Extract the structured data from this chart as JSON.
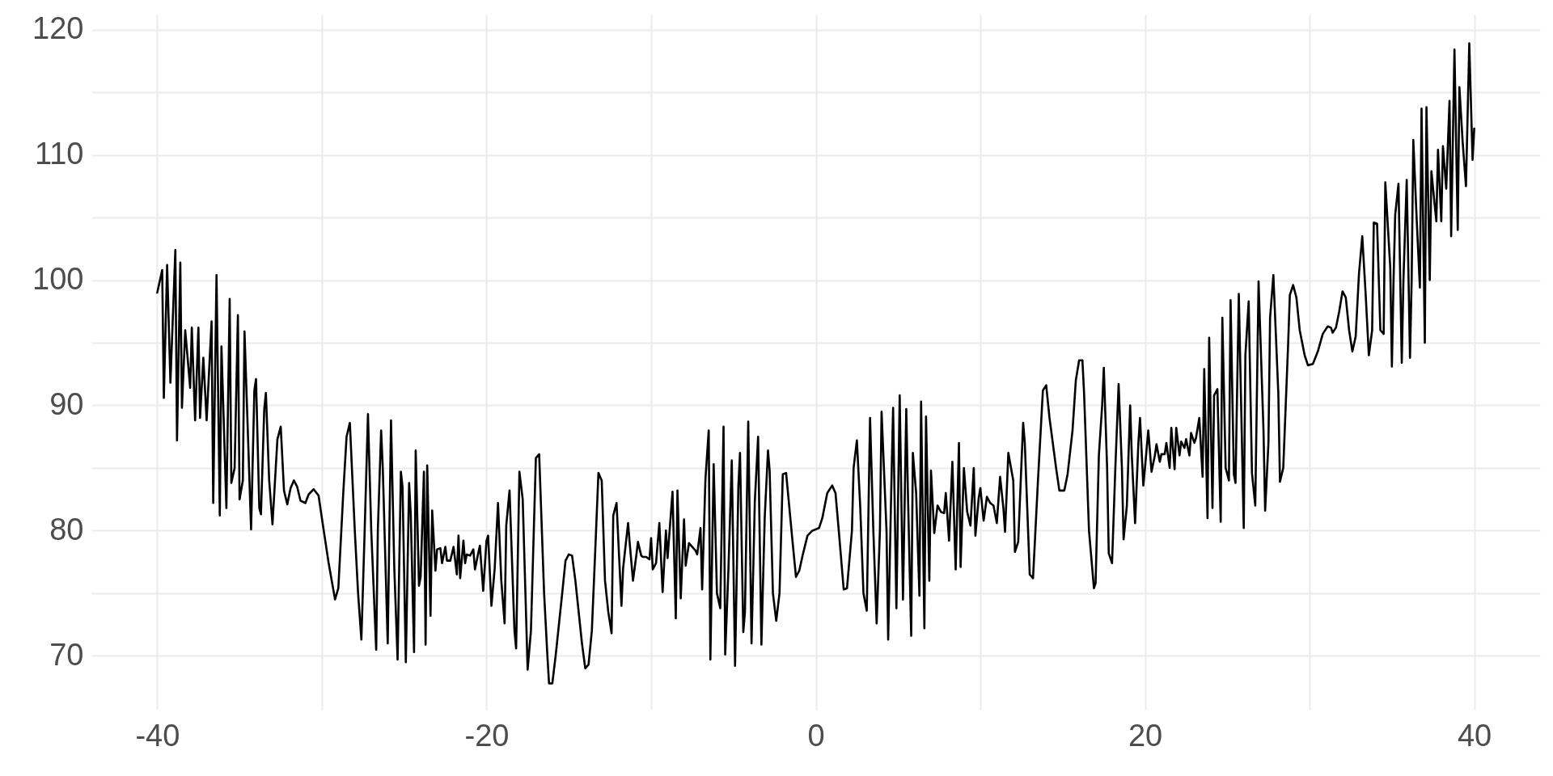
{
  "chart_data": {
    "type": "line",
    "xlim": [
      -44,
      44
    ],
    "ylim": [
      65.7,
      121.2
    ],
    "xticks": [
      -40,
      {
        "value": -30,
        "label": null
      },
      -20,
      {
        "value": -10,
        "label": null
      },
      0,
      {
        "value": 10,
        "label": null
      },
      20,
      {
        "value": 30,
        "label": null
      },
      40
    ],
    "yticks": [
      70,
      {
        "value": 75,
        "label": null
      },
      80,
      {
        "value": 85,
        "label": null
      },
      90,
      {
        "value": 95,
        "label": null
      },
      100,
      {
        "value": 105,
        "label": null
      },
      110,
      {
        "value": 115,
        "label": null
      },
      120
    ],
    "grid": true,
    "line_style": "solid",
    "marker": "none",
    "x": [
      -40,
      -39.7,
      -39.6,
      -39.4,
      -39.2,
      -38.9,
      -38.8,
      -38.6,
      -38.5,
      -38.3,
      -38.0,
      -37.9,
      -37.7,
      -37.5,
      -37.4,
      -37.2,
      -37.0,
      -36.7,
      -36.6,
      -36.4,
      -36.2,
      -36.1,
      -35.8,
      -35.6,
      -35.5,
      -35.3,
      -35.1,
      -35.0,
      -34.8,
      -34.7,
      -34.3,
      -34.1,
      -34.0,
      -33.8,
      -33.7,
      -33.5,
      -33.4,
      -33.2,
      -33.0,
      -32.7,
      -32.5,
      -32.3,
      -32.1,
      -31.9,
      -31.7,
      -31.5,
      -31.3,
      -31.0,
      -30.8,
      -30.5,
      -30.2,
      -30.0,
      -29.6,
      -29.2,
      -29.0,
      -28.7,
      -28.5,
      -28.3,
      -28.0,
      -27.8,
      -27.6,
      -27.4,
      -27.2,
      -27.0,
      -26.7,
      -26.6,
      -26.4,
      -26.3,
      -26.0,
      -25.8,
      -25.6,
      -25.4,
      -25.2,
      -25.1,
      -24.9,
      -24.7,
      -24.6,
      -24.4,
      -24.3,
      -24.1,
      -24.0,
      -23.8,
      -23.7,
      -23.6,
      -23.4,
      -23.3,
      -23.1,
      -23.0,
      -22.8,
      -22.7,
      -22.5,
      -22.4,
      -22.2,
      -22.0,
      -21.8,
      -21.7,
      -21.6,
      -21.4,
      -21.3,
      -21.2,
      -21.0,
      -20.8,
      -20.7,
      -20.5,
      -20.4,
      -20.2,
      -20.0,
      -19.9,
      -19.7,
      -19.5,
      -19.3,
      -19.1,
      -18.9,
      -18.8,
      -18.6,
      -18.3,
      -18.2,
      -18.0,
      -17.8,
      -17.5,
      -17.3,
      -17.0,
      -16.8,
      -16.5,
      -16.3,
      -16.2,
      -16.0,
      -15.8,
      -15.4,
      -15.2,
      -15.0,
      -14.8,
      -14.6,
      -14.2,
      -14.0,
      -13.8,
      -13.6,
      -13.4,
      -13.2,
      -13.0,
      -12.8,
      -12.6,
      -12.4,
      -12.3,
      -12.1,
      -11.8,
      -11.7,
      -11.4,
      -11.3,
      -11.1,
      -10.9,
      -10.8,
      -10.6,
      -10.5,
      -10.3,
      -10.1,
      -10.0,
      -9.9,
      -9.7,
      -9.5,
      -9.3,
      -9.1,
      -9.0,
      -8.7,
      -8.5,
      -8.4,
      -8.2,
      -8.0,
      -7.9,
      -7.7,
      -7.5,
      -7.3,
      -7.2,
      -7.0,
      -6.9,
      -6.7,
      -6.5,
      -6.4,
      -6.2,
      -6.0,
      -5.8,
      -5.6,
      -5.5,
      -5.3,
      -5.1,
      -4.9,
      -4.7,
      -4.6,
      -4.4,
      -4.3,
      -4.1,
      -3.9,
      -3.7,
      -3.5,
      -3.3,
      -3.1,
      -2.9,
      -2.8,
      -2.6,
      -2.4,
      -2.2,
      -2.0,
      -1.8,
      -1.4,
      -1.2,
      -1.0,
      -0.8,
      -0.5,
      -0.2,
      0.2,
      0.4,
      0.7,
      1.0,
      1.2,
      1.4,
      1.7,
      1.9,
      2.2,
      2.3,
      2.5,
      2.7,
      2.9,
      3.1,
      3.3,
      3.5,
      3.7,
      3.9,
      4.0,
      4.3,
      4.4,
      4.6,
      4.7,
      4.9,
      5.1,
      5.3,
      5.5,
      5.6,
      5.8,
      5.9,
      6.1,
      6.3,
      6.4,
      6.6,
      6.7,
      6.9,
      7.0,
      7.2,
      7.4,
      7.6,
      7.8,
      7.9,
      8.1,
      8.3,
      8.5,
      8.7,
      8.8,
      9.0,
      9.2,
      9.4,
      9.6,
      9.7,
      9.9,
      10.0,
      10.2,
      10.4,
      10.6,
      10.8,
      11.0,
      11.2,
      11.4,
      11.5,
      11.7,
      12.0,
      12.1,
      12.3,
      12.6,
      12.7,
      13.0,
      13.2,
      13.5,
      13.8,
      14.0,
      14.2,
      14.6,
      14.8,
      15.1,
      15.3,
      15.6,
      15.8,
      16.0,
      16.2,
      16.3,
      16.6,
      16.9,
      17.0,
      17.2,
      17.4,
      17.5,
      17.7,
      17.8,
      18.0,
      18.2,
      18.4,
      18.6,
      18.7,
      18.9,
      19.1,
      19.2,
      19.4,
      19.6,
      19.7,
      19.9,
      20.0,
      20.2,
      20.4,
      20.6,
      20.7,
      20.9,
      21.0,
      21.2,
      21.3,
      21.5,
      21.6,
      21.8,
      21.9,
      22.1,
      22.2,
      22.4,
      22.5,
      22.7,
      22.8,
      23.0,
      23.1,
      23.3,
      23.5,
      23.6,
      23.8,
      23.9,
      24.1,
      24.2,
      24.4,
      24.6,
      24.7,
      24.9,
      25.1,
      25.2,
      25.4,
      25.5,
      25.7,
      26.0,
      26.1,
      26.3,
      26.5,
      26.7,
      26.9,
      27.2,
      27.3,
      27.5,
      27.6,
      27.8,
      28.1,
      28.2,
      28.4,
      28.7,
      28.8,
      29.0,
      29.2,
      29.4,
      29.7,
      29.9,
      30.2,
      30.5,
      30.8,
      31.1,
      31.3,
      31.4,
      31.6,
      31.8,
      32.0,
      32.2,
      32.4,
      32.6,
      32.8,
      33.0,
      33.2,
      33.4,
      33.6,
      33.8,
      33.9,
      34.1,
      34.3,
      34.5,
      34.6,
      34.9,
      35.0,
      35.1,
      35.2,
      35.4,
      35.6,
      35.7,
      35.9,
      36.1,
      36.2,
      36.3,
      36.5,
      36.7,
      36.8,
      37.0,
      37.1,
      37.3,
      37.4,
      37.6,
      37.7,
      37.8,
      38.0,
      38.1,
      38.3,
      38.5,
      38.6,
      38.8,
      39.0,
      39.1,
      39.3,
      39.5,
      39.7,
      39.9,
      40.0
    ],
    "series": [
      {
        "color": "#000000",
        "values": [
          99,
          100.8,
          90.6,
          101.2,
          91.8,
          102.4,
          87.2,
          101.4,
          89.8,
          96,
          91.4,
          96.2,
          88.8,
          96.2,
          89,
          93.8,
          88.8,
          96.7,
          82.2,
          100.4,
          81.2,
          94.7,
          81.8,
          98.5,
          83.8,
          85,
          97.2,
          82.5,
          84,
          95.9,
          80.1,
          91.2,
          92.1,
          81.8,
          81.3,
          89.7,
          91,
          84,
          80.5,
          87.3,
          88.3,
          83.2,
          82.1,
          83.4,
          84,
          83.5,
          82.4,
          82.2,
          82.9,
          83.3,
          82.8,
          81,
          77.5,
          74.5,
          75.4,
          83,
          87.5,
          88.6,
          80,
          75,
          71.3,
          80,
          89.3,
          80,
          70.5,
          80,
          88,
          85,
          71,
          88.8,
          77,
          69.7,
          84.7,
          83.5,
          69.5,
          83.8,
          81.3,
          70.3,
          86.4,
          75.6,
          76.3,
          84.7,
          70.9,
          85.2,
          73.2,
          81.6,
          76.8,
          78.5,
          78.6,
          77.4,
          78.7,
          77.6,
          77.6,
          78.7,
          76.5,
          79.6,
          76.2,
          79.2,
          77.4,
          78.1,
          78,
          78.5,
          76.9,
          78.2,
          78.8,
          75.2,
          79.2,
          79.6,
          74,
          77,
          82.2,
          76,
          72.6,
          80.4,
          83.2,
          72,
          70.6,
          84.7,
          82.5,
          68.9,
          72,
          85.8,
          86.1,
          75,
          70,
          67.8,
          67.8,
          70,
          75,
          77.6,
          78.1,
          78,
          76,
          71,
          69,
          69.3,
          72,
          78.2,
          84.6,
          84,
          76,
          73.5,
          71.8,
          81.2,
          82.2,
          74,
          77,
          80.6,
          79,
          76,
          78,
          79.1,
          78,
          77.9,
          77.9,
          77.7,
          79.4,
          76.9,
          77.4,
          80.6,
          75.1,
          80,
          77.8,
          83.1,
          73,
          83.2,
          74.6,
          80.9,
          77.2,
          79,
          78.7,
          78.4,
          78.1,
          80.2,
          75.3,
          84.1,
          88,
          69.7,
          85.3,
          75,
          73.8,
          88.3,
          70.1,
          77,
          85.6,
          69.2,
          83.5,
          86.2,
          71.9,
          73.5,
          88.7,
          71,
          82.3,
          87.5,
          70.9,
          81,
          86.4,
          84.8,
          75,
          72.8,
          75,
          84.5,
          84.6,
          79,
          76.3,
          76.8,
          78,
          79.6,
          80,
          80.2,
          81,
          83,
          83.6,
          83,
          80,
          75.3,
          75.4,
          80,
          85,
          87.2,
          82,
          75,
          73.6,
          89,
          80,
          72.6,
          80,
          89.5,
          80,
          71.3,
          84,
          89.8,
          73.8,
          90.8,
          74.5,
          89.7,
          83,
          71.6,
          86.2,
          83,
          74.8,
          90.3,
          72.2,
          89.1,
          76,
          84.8,
          79.8,
          82,
          81.5,
          81.4,
          83,
          79.2,
          85.5,
          76.9,
          87,
          77.1,
          85,
          81.5,
          80.4,
          85,
          79.6,
          82.6,
          83.4,
          80.8,
          82.7,
          82.2,
          82,
          80.6,
          84.3,
          81.8,
          79.9,
          86.2,
          84,
          78.3,
          79.1,
          88.6,
          87,
          76.5,
          76.2,
          84,
          91.2,
          91.6,
          89,
          85,
          83.2,
          83.2,
          84.5,
          88,
          92,
          93.6,
          93.6,
          91,
          80,
          75.4,
          75.8,
          86,
          90,
          93,
          85,
          78.2,
          77.4,
          85,
          91.7,
          85,
          79.3,
          82,
          90,
          86,
          80.6,
          87,
          89,
          83.6,
          85,
          88,
          84.7,
          86,
          86.9,
          85.5,
          86.1,
          86.1,
          87,
          85,
          88.2,
          84.9,
          88.2,
          86,
          87.1,
          86.6,
          87.3,
          86,
          87.8,
          87,
          87.4,
          89,
          84.3,
          92.9,
          81,
          95.4,
          81.8,
          90.8,
          91.3,
          80.7,
          97,
          85,
          84,
          98.4,
          84.5,
          83.8,
          98.9,
          80.2,
          94,
          98.3,
          84.6,
          82,
          99.9,
          88,
          81.6,
          87,
          97,
          100.4,
          91,
          83.9,
          85,
          95,
          98.8,
          99.6,
          98.6,
          96,
          94,
          93.2,
          93.3,
          94.3,
          95.7,
          96.3,
          96.2,
          95.8,
          96.2,
          97.5,
          99.1,
          98.6,
          96,
          94.3,
          95.5,
          100.5,
          103.5,
          99,
          94,
          96,
          104.6,
          104.5,
          96,
          95.7,
          107.8,
          101,
          93.1,
          100,
          105.2,
          107.7,
          93.4,
          100,
          108,
          93.8,
          100,
          111.2,
          105,
          99.4,
          113.7,
          95,
          113.8,
          100,
          108.7,
          106,
          104.7,
          110.4,
          104.7,
          110.7,
          107.3,
          114.3,
          103.5,
          118.4,
          104,
          115.4,
          111,
          107.5,
          118.9,
          109.6,
          112.1
        ]
      }
    ]
  }
}
